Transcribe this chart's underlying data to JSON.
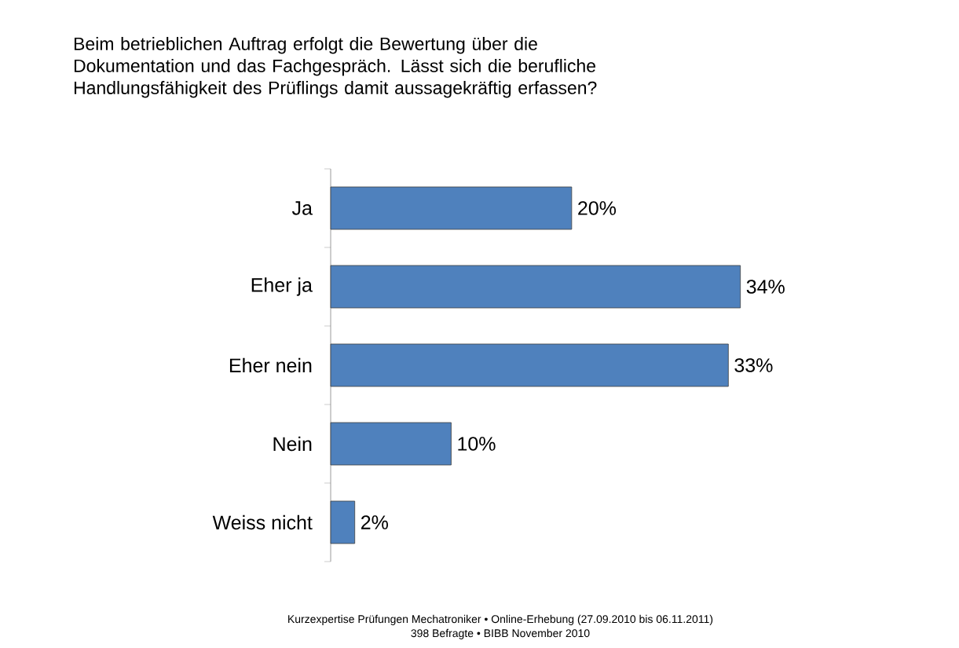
{
  "chart_data": {
    "type": "bar",
    "orientation": "horizontal",
    "title": "Beim betrieblichen Auftrag erfolgt die Bewertung über die Dokumentation und das Fachgespräch. Lässt sich die berufliche Handlungsfähigkeit des Prüflings damit aussagekräftig erfassen?",
    "categories": [
      "Ja",
      "Eher ja",
      "Eher nein",
      "Nein",
      "Weiss nicht"
    ],
    "values": [
      20,
      34,
      33,
      10,
      2
    ],
    "value_labels": [
      "20%",
      "34%",
      "33%",
      "10%",
      "2%"
    ],
    "color": "#4f81bd",
    "annotations": [
      "Kurzexpertise Prüfungen Mechatroniker • Online-Erhebung (27.09.2010 bis 06.11.2011)",
      "398 Befragte • BIBB November 2010"
    ]
  }
}
